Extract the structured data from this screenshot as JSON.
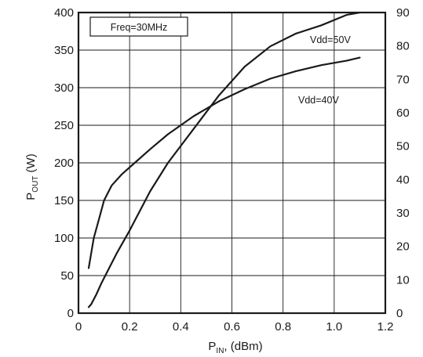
{
  "chart_data": {
    "type": "line",
    "title": "",
    "xlabel": "P",
    "xlabel_sub": "IN",
    "xlabel_suffix": ", (dBm)",
    "ylabel": "P",
    "ylabel_sub": "OUT",
    "ylabel_suffix": " (W)",
    "xlim": [
      0,
      1.2
    ],
    "ylim": [
      0,
      400
    ],
    "y2lim": [
      0,
      90
    ],
    "x_ticks": [
      "0",
      "0.2",
      "0.4",
      "0.6",
      "0.8",
      "1.0",
      "1.2"
    ],
    "y_ticks": [
      "0",
      "50",
      "100",
      "150",
      "200",
      "250",
      "300",
      "350",
      "400"
    ],
    "y2_ticks": [
      "0",
      "10",
      "20",
      "30",
      "40",
      "50",
      "60",
      "70",
      "80",
      "90"
    ],
    "grid": true,
    "annotation": "Freq=30MHz",
    "series": [
      {
        "name": "Vdd=50V",
        "x": [
          0.04,
          0.05,
          0.07,
          0.09,
          0.12,
          0.15,
          0.2,
          0.28,
          0.35,
          0.45,
          0.55,
          0.65,
          0.75,
          0.85,
          0.95,
          1.05,
          1.1
        ],
        "y": [
          8,
          12,
          25,
          40,
          60,
          80,
          110,
          162,
          200,
          245,
          290,
          328,
          355,
          372,
          383,
          397,
          400
        ]
      },
      {
        "name": "Vdd=40V",
        "x": [
          0.04,
          0.06,
          0.08,
          0.1,
          0.13,
          0.17,
          0.22,
          0.28,
          0.35,
          0.45,
          0.55,
          0.65,
          0.75,
          0.85,
          0.95,
          1.05,
          1.1
        ],
        "y": [
          60,
          100,
          125,
          150,
          170,
          185,
          200,
          218,
          238,
          262,
          282,
          298,
          312,
          322,
          330,
          336,
          340
        ]
      }
    ],
    "series_labels": [
      "Vdd=50V",
      "Vdd=40V"
    ]
  }
}
